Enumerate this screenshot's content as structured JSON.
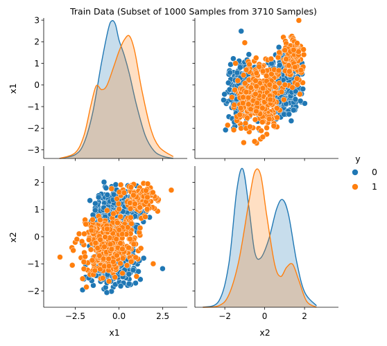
{
  "chart_data": {
    "type": "scatter",
    "kind": "pairplot",
    "title": "Train Data (Subset of 1000 Samples from 3710 Samples)",
    "variables": [
      "x1",
      "x2"
    ],
    "hue_title": "y",
    "hue": [
      {
        "name": "0",
        "color": "#1f77b4"
      },
      {
        "name": "1",
        "color": "#ff7f0e"
      }
    ],
    "x1_range": [
      -4.3,
      3.9
    ],
    "x2_range": [
      -3.5,
      3.7
    ],
    "x1_axis_range": [
      -3.4,
      3.1
    ],
    "x2_axis_range": [
      -2.6,
      2.6
    ],
    "x1_ticks_bottom": [
      "-2.5",
      "0.0",
      "2.5"
    ],
    "x2_ticks_bottom": [
      "-2",
      "0",
      "2"
    ],
    "x1_ticks_left": [
      "3",
      "2",
      "1",
      "0",
      "-1",
      "-2",
      "-3"
    ],
    "x2_ticks_left": [
      "2",
      "1",
      "0",
      "-1",
      "-2"
    ],
    "density_x1": {
      "class_0": {
        "x": [
          -3.4,
          -2.5,
          -2.0,
          -1.5,
          -1.0,
          -0.6,
          -0.4,
          -0.2,
          0.0,
          0.3,
          0.6,
          1.0,
          1.5,
          2.0,
          2.5,
          3.1
        ],
        "y": [
          0.0,
          0.01,
          0.04,
          0.12,
          0.25,
          0.34,
          0.36,
          0.35,
          0.31,
          0.27,
          0.22,
          0.14,
          0.06,
          0.02,
          0.006,
          0.0
        ]
      },
      "class_1": {
        "x": [
          -3.4,
          -2.5,
          -2.0,
          -1.6,
          -1.3,
          -1.0,
          -0.7,
          -0.3,
          0.0,
          0.3,
          0.6,
          0.9,
          1.3,
          1.8,
          2.3,
          3.1
        ],
        "y": [
          0.0,
          0.015,
          0.06,
          0.14,
          0.19,
          0.18,
          0.19,
          0.24,
          0.28,
          0.31,
          0.32,
          0.28,
          0.18,
          0.08,
          0.03,
          0.005
        ]
      }
    },
    "density_x2": {
      "class_0": {
        "x": [
          -3.1,
          -2.3,
          -1.8,
          -1.4,
          -1.1,
          -0.8,
          -0.5,
          -0.2,
          0.2,
          0.6,
          0.9,
          1.2,
          1.6,
          2.0,
          2.6
        ],
        "y": [
          0.0,
          0.02,
          0.14,
          0.38,
          0.45,
          0.33,
          0.18,
          0.16,
          0.22,
          0.32,
          0.35,
          0.3,
          0.15,
          0.05,
          0.005
        ]
      },
      "class_1": {
        "x": [
          -3.1,
          -2.3,
          -1.8,
          -1.3,
          -0.8,
          -0.5,
          -0.2,
          0.1,
          0.5,
          0.8,
          1.1,
          1.4,
          1.7,
          2.1,
          2.6
        ],
        "y": [
          0.0,
          0.005,
          0.04,
          0.15,
          0.34,
          0.44,
          0.43,
          0.3,
          0.14,
          0.1,
          0.13,
          0.14,
          0.09,
          0.02,
          0.0
        ]
      }
    }
  }
}
